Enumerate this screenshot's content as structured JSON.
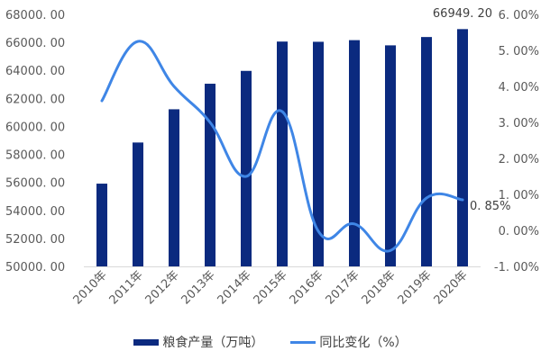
{
  "chart_data": {
    "type": "bar+line",
    "title": "",
    "categories": [
      "2010年",
      "2011年",
      "2012年",
      "2013年",
      "2014年",
      "2015年",
      "2016年",
      "2017年",
      "2018年",
      "2019年",
      "2020年"
    ],
    "series": [
      {
        "name": "粮食产量（万吨）",
        "type": "bar",
        "axis": "left",
        "color": "#0b2a7f",
        "values": [
          55911,
          58849,
          61223,
          63048,
          63965,
          66060,
          66044,
          66161,
          65789,
          66384,
          66949.2
        ]
      },
      {
        "name": "同比变化（%）",
        "type": "line",
        "axis": "right",
        "color": "#3f86e6",
        "values": [
          3.6,
          5.25,
          4.0,
          3.0,
          1.5,
          3.3,
          -0.02,
          0.18,
          -0.56,
          0.9,
          0.85
        ]
      }
    ],
    "left_axis": {
      "ylim": [
        50000,
        68000
      ],
      "ticks": [
        "50000. 00",
        "52000. 00",
        "54000. 00",
        "56000. 00",
        "58000. 00",
        "60000. 00",
        "62000. 00",
        "64000. 00",
        "66000. 00",
        "68000. 00"
      ]
    },
    "right_axis": {
      "ylim": [
        -1,
        6
      ],
      "ticks": [
        "-1. 00%",
        "0. 00%",
        "1. 00%",
        "2. 00%",
        "3. 00%",
        "4. 00%",
        "5. 00%",
        "6. 00%"
      ]
    },
    "annotations": [
      {
        "label": "66949. 20",
        "target": "2020年 bar"
      },
      {
        "label": "0. 85%",
        "target": "2020年 line"
      }
    ],
    "grid": false,
    "legend_position": "bottom"
  },
  "legend": {
    "bar_label": "粮食产量（万吨）",
    "line_label": "同比变化（%）"
  }
}
